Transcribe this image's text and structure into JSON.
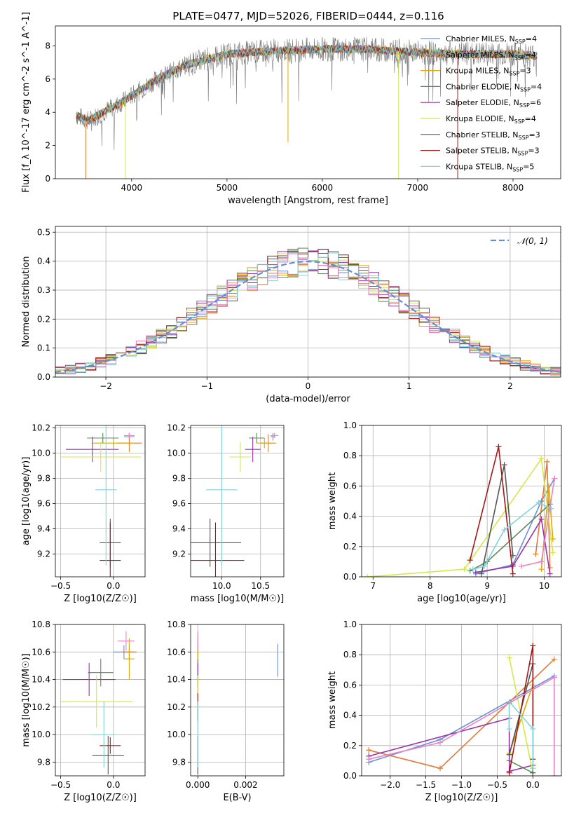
{
  "page": {
    "title": "PLATE=0477, MJD=52026, FIBERID=0444, z=0.116"
  },
  "colors": {
    "Chabrier MILES": "#6b8fd9",
    "Salpeter MILES": "#e07b39",
    "Kroupa MILES": "#e0a800",
    "Chabrier ELODIE": "#5c8a5c",
    "Salpeter ELODIE": "#9932a8",
    "Kroupa ELODIE": "#d4e84a",
    "Chabrier STELIB": "#555555",
    "Salpeter STELIB": "#a01818",
    "Kroupa STELIB": "#7fd4d9",
    "pink": "#e882c0",
    "gauss": "#5b8fd6"
  },
  "chart_data": [
    {
      "type": "line",
      "id": "spectrum",
      "title": "PLATE=0477, MJD=52026, FIBERID=0444, z=0.116",
      "xlabel": "wavelength [Angstrom, rest frame]",
      "ylabel": "Flux [f_λ 10^-17 erg cm^-2 s^-1 A^-1]",
      "xlim": [
        3200,
        8500
      ],
      "ylim": [
        0,
        9.2
      ],
      "xticks": [
        4000,
        5000,
        6000,
        7000,
        8000
      ],
      "yticks": [
        0,
        2,
        4,
        6,
        8
      ],
      "grid": false,
      "legend_position": "right",
      "legend": [
        {
          "main": "Chabrier MILES, N",
          "sub": "SSP",
          "tail": "=4",
          "color": "Chabrier MILES"
        },
        {
          "main": "Salpeter MILES, N",
          "sub": "SSP",
          "tail": "=4",
          "color": "Salpeter MILES"
        },
        {
          "main": "Kroupa MILES, N",
          "sub": "SSP",
          "tail": "=3",
          "color": "Kroupa MILES"
        },
        {
          "main": "Chabrier ELODIE, N",
          "sub": "SSP",
          "tail": "=4",
          "color": "Chabrier ELODIE"
        },
        {
          "main": "Salpeter ELODIE, N",
          "sub": "SSP",
          "tail": "=6",
          "color": "Salpeter ELODIE"
        },
        {
          "main": "Kroupa ELODIE, N",
          "sub": "SSP",
          "tail": "=4",
          "color": "Kroupa ELODIE"
        },
        {
          "main": "Chabrier STELIB, N",
          "sub": "SSP",
          "tail": "=3",
          "color": "Chabrier STELIB"
        },
        {
          "main": "Salpeter STELIB, N",
          "sub": "SSP",
          "tail": "=3",
          "color": "Salpeter STELIB"
        },
        {
          "main": "Kroupa STELIB, N",
          "sub": "SSP",
          "tail": "=5",
          "color": "Kroupa STELIB"
        }
      ],
      "continuum": [
        [
          3420,
          3.8
        ],
        [
          3550,
          3.5
        ],
        [
          3700,
          4.0
        ],
        [
          3900,
          4.6
        ],
        [
          4000,
          5.0
        ],
        [
          4300,
          6.1
        ],
        [
          4600,
          6.9
        ],
        [
          5000,
          7.5
        ],
        [
          5500,
          7.7
        ],
        [
          6000,
          7.8
        ],
        [
          6500,
          7.8
        ],
        [
          7000,
          7.6
        ],
        [
          7500,
          7.5
        ],
        [
          8000,
          7.5
        ],
        [
          8250,
          7.4
        ]
      ],
      "features": [
        {
          "x": 3520,
          "y": 0,
          "color": "Salpeter MILES"
        },
        {
          "x": 3935,
          "y": 0,
          "color": "Kroupa ELODIE"
        },
        {
          "x": 6800,
          "y": 0,
          "color": "Kroupa ELODIE"
        },
        {
          "x": 7420,
          "y": 0,
          "color": "Salpeter STELIB"
        },
        {
          "x": 5640,
          "y": 2.2,
          "color": "Kroupa MILES"
        }
      ]
    },
    {
      "type": "line",
      "id": "residuals",
      "xlabel": "(data-model)/error",
      "ylabel": "Normed distribution",
      "xlim": [
        -2.5,
        2.5
      ],
      "ylim": [
        0,
        0.52
      ],
      "xticks": [
        -2,
        -1,
        0,
        1,
        2
      ],
      "xticklabels": [
        "−2",
        "−1",
        "0",
        "1",
        "2"
      ],
      "yticks": [
        0.0,
        0.1,
        0.2,
        0.3,
        0.4,
        0.5
      ],
      "yticklabels": [
        "0.0",
        "0.1",
        "0.2",
        "0.3",
        "0.4",
        "0.5"
      ],
      "grid": true,
      "legend_position": "upper right",
      "legend": [
        {
          "label": "𝒩(0, 1)",
          "color": "gauss"
        }
      ],
      "bin_width": 0.1,
      "gaussian": {
        "mean": 0,
        "sigma": 1
      }
    },
    {
      "type": "scatter",
      "id": "age-vs-Z",
      "xlabel": "Z [log10(Z/Z☉)]",
      "ylabel": "age [log10(age/yr)]",
      "xlim": [
        -0.55,
        0.3
      ],
      "ylim": [
        9.02,
        10.22
      ],
      "xticks": [
        -0.5,
        0.0
      ],
      "xticklabels": [
        "−0.5",
        "0.0"
      ],
      "yticks": [
        9.2,
        9.4,
        9.6,
        9.8,
        10.0,
        10.2
      ],
      "yticklabels": [
        "9.2",
        "9.4",
        "9.6",
        "9.8",
        "10.0",
        "10.2"
      ],
      "grid": true,
      "points": [
        {
          "color": "Chabrier MILES",
          "x": 0.15,
          "xerr": 0.05,
          "y": 10.13,
          "yerr": 0.03
        },
        {
          "color": "Salpeter MILES",
          "x": 0.15,
          "xerr": 0.12,
          "y": 10.08,
          "yerr": 0.07
        },
        {
          "color": "Kroupa MILES",
          "x": 0.0,
          "xerr": 0.2,
          "y": 10.08,
          "yerr": 0.04
        },
        {
          "color": "Chabrier ELODIE",
          "x": -0.1,
          "xerr": 0.15,
          "y": 10.12,
          "yerr": 0.04
        },
        {
          "color": "Salpeter ELODIE",
          "x": -0.2,
          "xerr": 0.25,
          "y": 10.03,
          "yerr": 0.1
        },
        {
          "color": "Kroupa ELODIE",
          "x": -0.12,
          "xerr": 0.38,
          "y": 9.97,
          "yerr": 0.12
        },
        {
          "color": "Chabrier STELIB",
          "x": -0.03,
          "xerr": 0.1,
          "y": 9.29,
          "yerr": 0.19
        },
        {
          "color": "Salpeter STELIB",
          "x": -0.03,
          "xerr": 0.1,
          "y": 9.15,
          "yerr": 0.3
        },
        {
          "color": "Kroupa STELIB",
          "x": -0.07,
          "xerr": 0.1,
          "y": 9.71,
          "yerr": 0.6
        },
        {
          "color": "pink",
          "x": 0.15,
          "xerr": 0.05,
          "y": 10.14,
          "yerr": 0.02
        }
      ]
    },
    {
      "type": "scatter",
      "id": "age-vs-mass",
      "xlabel": "mass [log10(M/M☉)]",
      "ylabel": "",
      "xlim": [
        9.6,
        10.8
      ],
      "ylim": [
        9.02,
        10.22
      ],
      "xticks": [
        10.0,
        10.5
      ],
      "xticklabels": [
        "10.0",
        "10.5"
      ],
      "yticks": [
        9.2,
        9.4,
        9.6,
        9.8,
        10.0,
        10.2
      ],
      "yticklabels": [
        "9.2",
        "9.4",
        "9.6",
        "9.8",
        "10.0",
        "10.2"
      ],
      "grid": true,
      "points": [
        {
          "color": "Chabrier MILES",
          "x": 10.66,
          "xerr": 0.03,
          "y": 10.13,
          "yerr": 0.03
        },
        {
          "color": "Salpeter MILES",
          "x": 10.6,
          "xerr": 0.1,
          "y": 10.08,
          "yerr": 0.07
        },
        {
          "color": "Kroupa MILES",
          "x": 10.55,
          "xerr": 0.1,
          "y": 10.08,
          "yerr": 0.04
        },
        {
          "color": "Chabrier ELODIE",
          "x": 10.45,
          "xerr": 0.1,
          "y": 10.12,
          "yerr": 0.04
        },
        {
          "color": "Salpeter ELODIE",
          "x": 10.4,
          "xerr": 0.1,
          "y": 10.03,
          "yerr": 0.1
        },
        {
          "color": "Kroupa ELODIE",
          "x": 10.24,
          "xerr": 0.14,
          "y": 9.97,
          "yerr": 0.12
        },
        {
          "color": "Chabrier STELIB",
          "x": 9.85,
          "xerr": 0.4,
          "y": 9.29,
          "yerr": 0.19
        },
        {
          "color": "Salpeter STELIB",
          "x": 9.92,
          "xerr": 0.37,
          "y": 9.15,
          "yerr": 0.3
        },
        {
          "color": "Kroupa STELIB",
          "x": 10.0,
          "xerr": 0.2,
          "y": 9.71,
          "yerr": 0.6
        },
        {
          "color": "pink",
          "x": 10.68,
          "xerr": 0.05,
          "y": 10.14,
          "yerr": 0.02
        }
      ]
    },
    {
      "type": "line",
      "id": "weight-vs-age",
      "xlabel": "age [log10(age/yr)]",
      "ylabel": "mass weight",
      "xlim": [
        6.8,
        10.3
      ],
      "ylim": [
        0,
        1
      ],
      "xticks": [
        7,
        8,
        9,
        10
      ],
      "xticklabels": [
        "7",
        "8",
        "9",
        "10"
      ],
      "yticks": [
        0.0,
        0.2,
        0.4,
        0.6,
        0.8,
        1.0
      ],
      "yticklabels": [
        "0.0",
        "0.2",
        "0.4",
        "0.6",
        "0.8",
        "1.0"
      ],
      "grid": true,
      "series": [
        {
          "color": "Chabrier MILES",
          "x": [
            8.8,
            9.45,
            9.95,
            10.18
          ],
          "y": [
            0.02,
            0.08,
            0.5,
            0.65
          ]
        },
        {
          "color": "Salpeter MILES",
          "x": [
            9.85,
            10.05,
            10.1
          ],
          "y": [
            0.15,
            0.76,
            0.06
          ]
        },
        {
          "color": "Kroupa MILES",
          "x": [
            9.95,
            10.08,
            10.15
          ],
          "y": [
            0.05,
            0.6,
            0.25
          ]
        },
        {
          "color": "Chabrier ELODIE",
          "x": [
            8.7,
            9.0,
            10.1
          ],
          "y": [
            0.04,
            0.1,
            0.48
          ]
        },
        {
          "color": "Salpeter ELODIE",
          "x": [
            8.8,
            9.45,
            9.95,
            10.1
          ],
          "y": [
            0.03,
            0.07,
            0.38,
            0.02
          ]
        },
        {
          "color": "Kroupa ELODIE",
          "x": [
            6.9,
            8.6,
            9.95,
            10.15
          ],
          "y": [
            0.0,
            0.05,
            0.78,
            0.16
          ]
        },
        {
          "color": "Chabrier STELIB",
          "x": [
            8.9,
            9.3,
            9.45
          ],
          "y": [
            0.02,
            0.74,
            0.14
          ]
        },
        {
          "color": "Salpeter STELIB",
          "x": [
            8.7,
            9.2,
            9.45
          ],
          "y": [
            0.11,
            0.86,
            0.02
          ]
        },
        {
          "color": "Kroupa STELIB",
          "x": [
            8.75,
            8.95,
            9.3,
            9.9,
            10.12
          ],
          "y": [
            0.05,
            0.07,
            0.31,
            0.49,
            0.45
          ]
        },
        {
          "color": "pink",
          "x": [
            9.6,
            9.95,
            10.18
          ],
          "y": [
            0.07,
            0.1,
            0.65
          ]
        }
      ]
    },
    {
      "type": "scatter",
      "id": "mass-vs-Z",
      "xlabel": "Z [log10(Z/Z☉)]",
      "ylabel": "mass [log10(M/M☉)]",
      "xlim": [
        -0.55,
        0.3
      ],
      "ylim": [
        9.7,
        10.8
      ],
      "xticks": [
        -0.5,
        0.0
      ],
      "xticklabels": [
        "−0.5",
        "0.0"
      ],
      "yticks": [
        9.8,
        10.0,
        10.2,
        10.4,
        10.6,
        10.8
      ],
      "yticklabels": [
        "9.8",
        "10.0",
        "10.2",
        "10.4",
        "10.6",
        "10.8"
      ],
      "grid": true,
      "points": [
        {
          "color": "Chabrier MILES",
          "x": 0.1,
          "xerr": 0.1,
          "y": 10.6,
          "yerr": 0.05
        },
        {
          "color": "Salpeter MILES",
          "x": 0.15,
          "xerr": 0.07,
          "y": 10.6,
          "yerr": 0.05
        },
        {
          "color": "Kroupa MILES",
          "x": 0.15,
          "xerr": 0.05,
          "y": 10.55,
          "yerr": 0.15
        },
        {
          "color": "Chabrier ELODIE",
          "x": -0.12,
          "xerr": 0.12,
          "y": 10.45,
          "yerr": 0.1
        },
        {
          "color": "Salpeter ELODIE",
          "x": -0.23,
          "xerr": 0.25,
          "y": 10.4,
          "yerr": 0.12
        },
        {
          "color": "Kroupa ELODIE",
          "x": -0.16,
          "xerr": 0.34,
          "y": 10.24,
          "yerr": 0.19
        },
        {
          "color": "Chabrier STELIB",
          "x": -0.05,
          "xerr": 0.15,
          "y": 9.85,
          "yerr": 0.14
        },
        {
          "color": "Salpeter STELIB",
          "x": -0.03,
          "xerr": 0.1,
          "y": 9.92,
          "yerr": 0.06
        },
        {
          "color": "Kroupa STELIB",
          "x": -0.09,
          "xerr": 0.11,
          "y": 10.0,
          "yerr": 0.24
        },
        {
          "color": "pink",
          "x": 0.12,
          "xerr": 0.08,
          "y": 10.68,
          "yerr": 0.07
        }
      ]
    },
    {
      "type": "scatter",
      "id": "mass-vs-ebv",
      "xlabel": "E(B-V)",
      "ylabel": "",
      "xlim": [
        -0.0003,
        0.0036
      ],
      "ylim": [
        9.7,
        10.8
      ],
      "xticks": [
        0.0,
        0.002
      ],
      "xticklabels": [
        "0.000",
        "0.002"
      ],
      "yticks": [
        9.8,
        10.0,
        10.2,
        10.4,
        10.6,
        10.8
      ],
      "yticklabels": [
        "9.8",
        "10.0",
        "10.2",
        "10.4",
        "10.6",
        "10.8"
      ],
      "grid": true,
      "points": [
        {
          "color": "Chabrier MILES",
          "x": 0.00334,
          "xerr": 0.0,
          "y": 10.54,
          "yerr": 0.12
        },
        {
          "color": "Salpeter MILES",
          "x": 0.0,
          "xerr": 0.0,
          "y": 10.6,
          "yerr": 0.06
        },
        {
          "color": "Kroupa MILES",
          "x": 0.0,
          "xerr": 0.0,
          "y": 10.55,
          "yerr": 0.15
        },
        {
          "color": "Chabrier ELODIE",
          "x": 0.0,
          "xerr": 0.0,
          "y": 10.45,
          "yerr": 0.1
        },
        {
          "color": "Salpeter ELODIE",
          "x": 0.0,
          "xerr": 0.0,
          "y": 10.4,
          "yerr": 0.12
        },
        {
          "color": "Kroupa ELODIE",
          "x": 0.0,
          "xerr": 0.0,
          "y": 10.24,
          "yerr": 0.19
        },
        {
          "color": "Chabrier STELIB",
          "x": 0.0,
          "xerr": 0.0,
          "y": 9.85,
          "yerr": 0.14
        },
        {
          "color": "Salpeter STELIB",
          "x": 0.0,
          "xerr": 0.0,
          "y": 10.2,
          "yerr": 0.1
        },
        {
          "color": "Kroupa STELIB",
          "x": 0.0,
          "xerr": 0.0,
          "y": 10.0,
          "yerr": 0.24
        },
        {
          "color": "pink",
          "x": 0.0,
          "xerr": 0.0,
          "y": 10.68,
          "yerr": 0.07
        }
      ]
    },
    {
      "type": "line",
      "id": "weight-vs-Z",
      "xlabel": "Z [log10(Z/Z☉)]",
      "ylabel": "mass weight",
      "xlim": [
        -2.4,
        0.4
      ],
      "ylim": [
        0,
        1
      ],
      "xticks": [
        -2.0,
        -1.5,
        -1.0,
        -0.5,
        0.0
      ],
      "xticklabels": [
        "−2.0",
        "−1.5",
        "−1.0",
        "−0.5",
        "0.0"
      ],
      "yticks": [
        0.0,
        0.2,
        0.4,
        0.6,
        0.8,
        1.0
      ],
      "yticklabels": [
        "0.0",
        "0.2",
        "0.4",
        "0.6",
        "0.8",
        "1.0"
      ],
      "grid": true,
      "series": [
        {
          "color": "Chabrier MILES",
          "x": [
            -2.3,
            -1.3,
            0.3
          ],
          "y": [
            0.09,
            0.24,
            0.66
          ]
        },
        {
          "color": "Salpeter MILES",
          "x": [
            -2.3,
            -1.3,
            0.3
          ],
          "y": [
            0.17,
            0.05,
            0.77
          ]
        },
        {
          "color": "Kroupa MILES",
          "x": [
            -0.33,
            0.0
          ],
          "y": [
            0.15,
            0.6
          ]
        },
        {
          "color": "Chabrier ELODIE",
          "x": [
            -0.33,
            -0.33,
            0.0
          ],
          "y": [
            0.48,
            0.1,
            0.02
          ]
        },
        {
          "color": "Salpeter ELODIE",
          "x": [
            -2.3,
            -0.33,
            -0.33,
            0.0
          ],
          "y": [
            0.13,
            0.38,
            0.03,
            0.07
          ]
        },
        {
          "color": "Kroupa ELODIE",
          "x": [
            -0.33,
            0.0
          ],
          "y": [
            0.78,
            0.02
          ]
        },
        {
          "color": "Chabrier STELIB",
          "x": [
            -0.33,
            0.0,
            0.0
          ],
          "y": [
            0.14,
            0.74,
            0.02
          ]
        },
        {
          "color": "Salpeter STELIB",
          "x": [
            -0.33,
            0.0,
            0.0
          ],
          "y": [
            0.02,
            0.86,
            0.11
          ]
        },
        {
          "color": "Kroupa STELIB",
          "x": [
            -0.33,
            -0.33,
            0.0,
            0.0
          ],
          "y": [
            0.31,
            0.49,
            0.31,
            0.05
          ]
        },
        {
          "color": "pink",
          "x": [
            -2.3,
            -1.3,
            0.3,
            0.3
          ],
          "y": [
            0.11,
            0.22,
            0.65,
            0.0
          ]
        }
      ]
    }
  ]
}
